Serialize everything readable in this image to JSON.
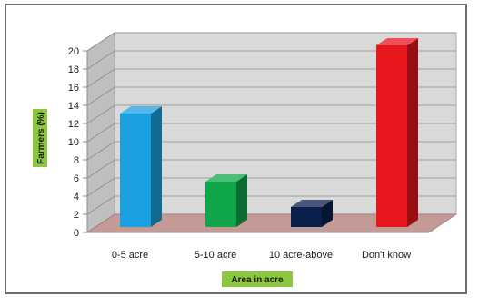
{
  "chart_data": {
    "type": "bar",
    "categories": [
      "0-5 acre",
      "5-10 acre",
      "10 acre-above",
      "Don't know"
    ],
    "values": [
      12.5,
      5,
      2.2,
      20
    ],
    "bar_colors": [
      "#1ba1e2",
      "#12a64a",
      "#0b1f4d",
      "#e8161d"
    ],
    "xlabel": "Area in acre",
    "ylabel": "Farmers (%)",
    "ylim": [
      0,
      20
    ],
    "yticks": [
      0,
      2,
      4,
      6,
      8,
      10,
      12,
      14,
      16,
      18,
      20
    ],
    "grid": true,
    "style": "3d-column",
    "wall_color": "#d9d9d9",
    "floor_color": "#c49a97",
    "label_badge_color": "#8dc63f"
  }
}
